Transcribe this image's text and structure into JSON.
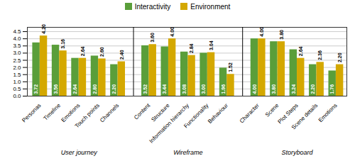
{
  "chart_data": {
    "type": "bar",
    "categories": [
      "Personas",
      "Timeline",
      "Emotions",
      "Touch points",
      "Channels",
      "Content",
      "Structure",
      "Information hierarchy",
      "Functionality",
      "Behaviour",
      "Character",
      "Scene",
      "Plot Steps",
      "Scene details",
      "Emotions"
    ],
    "groups": [
      "User journey",
      "User journey",
      "User journey",
      "User journey",
      "User journey",
      "Wireframe",
      "Wireframe",
      "Wireframe",
      "Wireframe",
      "Wireframe",
      "Storyboard",
      "Storyboard",
      "Storyboard",
      "Storyboard",
      "Storyboard"
    ],
    "series": [
      {
        "name": "Interactivity",
        "color": "#5a9e3a",
        "values": [
          3.72,
          3.56,
          2.64,
          2.8,
          2.2,
          3.52,
          3.44,
          3.08,
          3,
          1.96,
          4,
          3.8,
          3.24,
          2.2,
          1.76
        ],
        "value_labels": [
          "3.72",
          "3.56",
          "2.64",
          "2.80",
          "2.20",
          "3.52",
          "3.44",
          "3.08",
          "3.00",
          "1.96",
          "4.00",
          "3.80",
          "3.24",
          "2.20",
          "1.76"
        ]
      },
      {
        "name": "Environment",
        "color": "#d4a800",
        "values": [
          4.2,
          3.16,
          2.64,
          2.6,
          2.4,
          3.6,
          4,
          2.84,
          3.04,
          1.52,
          4,
          3.8,
          2.64,
          2.36,
          2.2
        ],
        "value_labels": [
          "4.20",
          "3.16",
          "2.64",
          "2.60",
          "2.40",
          "3.60",
          "4.00",
          "2.84",
          "3.04",
          "1.52",
          "4.00",
          "3.80",
          "2.64",
          "2.36",
          "2.20"
        ]
      }
    ],
    "ylim": [
      0,
      4.8
    ],
    "yticks": [
      {
        "value": 0,
        "label": "0.0"
      },
      0.5,
      {
        "value": 1,
        "label": "1.0"
      },
      1.5,
      {
        "value": 2,
        "label": "2.0"
      },
      2.5,
      {
        "value": 3,
        "label": "3.0"
      },
      3.5,
      {
        "value": 4,
        "label": "4.0"
      },
      4.5
    ],
    "grid": true,
    "legend": "top",
    "data_labels": true
  }
}
